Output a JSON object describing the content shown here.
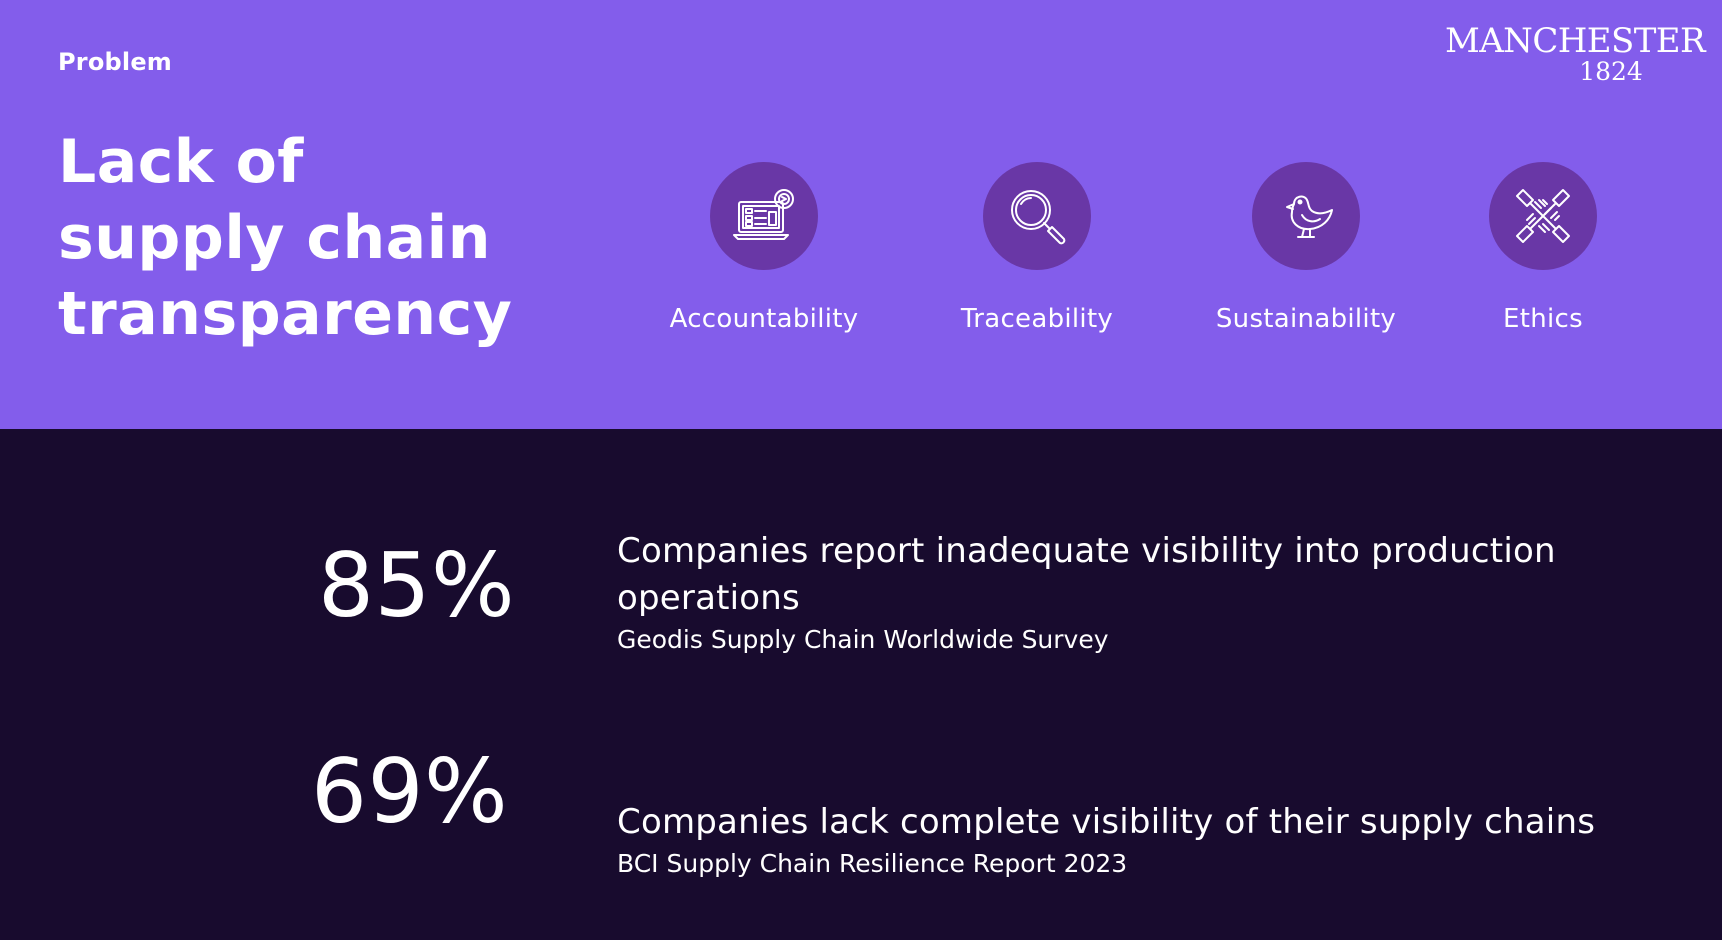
{
  "slide": {
    "section_label": "Problem",
    "title_lines": [
      "Lack of",
      "supply chain",
      "transparency"
    ]
  },
  "logo": {
    "word": "MANCHESTER",
    "year": "1824"
  },
  "features": [
    {
      "label": "Accountability",
      "icon": "laptop-dashboard-icon"
    },
    {
      "label": "Traceability",
      "icon": "magnifying-glass-icon"
    },
    {
      "label": "Sustainability",
      "icon": "bird-icon"
    },
    {
      "label": "Ethics",
      "icon": "joined-hands-icon"
    }
  ],
  "stats": [
    {
      "value": "85%",
      "description": "Companies report inadequate visibility into production operations",
      "source": "Geodis Supply Chain Worldwide Survey"
    },
    {
      "value": "69%",
      "description": "Companies lack complete visibility of their supply chains",
      "source": "BCI Supply Chain Resilience Report 2023"
    }
  ],
  "colors": {
    "top_panel": "#835DEB",
    "bottom_panel": "#180B2E",
    "icon_circle": "#6937A6",
    "text": "#FFFFFF"
  }
}
